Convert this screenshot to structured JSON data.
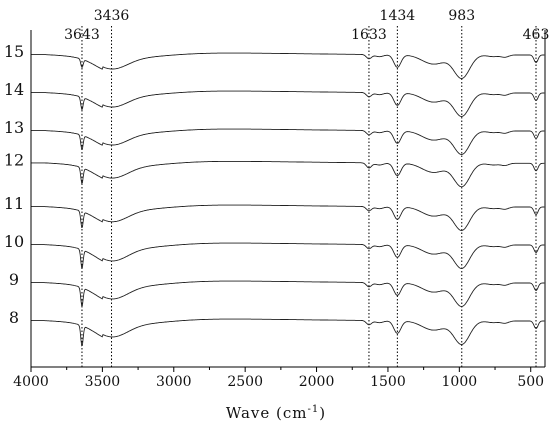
{
  "chart_data": {
    "type": "line",
    "title": "",
    "xlabel": "Wave  (cm",
    "xlabel_sup": "-1",
    "xlabel_close": ")",
    "ylabel": "",
    "xlim": [
      4000,
      400
    ],
    "x_ticks": [
      4000,
      3500,
      3000,
      2500,
      2000,
      1500,
      1000,
      500
    ],
    "x_tick_labels": [
      "4000",
      "3500",
      "3000",
      "2500",
      "2000",
      "1500",
      "1000",
      "500"
    ],
    "grid": false,
    "reference_lines": [
      {
        "x": 3643,
        "label": "3643"
      },
      {
        "x": 3436,
        "label": "3436"
      },
      {
        "x": 1633,
        "label": "1633"
      },
      {
        "x": 1434,
        "label": "1434"
      },
      {
        "x": 983,
        "label": "983"
      },
      {
        "x": 463,
        "label": "463"
      }
    ],
    "series": [
      {
        "name": "15",
        "offset": 15.0,
        "d3643": 0.2,
        "d3436": 0.4,
        "d1633": 0.1,
        "d1434": 0.3,
        "d983": 0.55,
        "d463": 0.18
      },
      {
        "name": "14",
        "offset": 13.0,
        "d3643": 0.3,
        "d3436": 0.4,
        "d1633": 0.1,
        "d1434": 0.3,
        "d983": 0.55,
        "d463": 0.18
      },
      {
        "name": "13",
        "offset": 11.0,
        "d3643": 0.35,
        "d3436": 0.4,
        "d1633": 0.1,
        "d1434": 0.3,
        "d983": 0.55,
        "d463": 0.18
      },
      {
        "name": "12",
        "offset": 9.3,
        "d3643": 0.38,
        "d3436": 0.42,
        "d1633": 0.12,
        "d1434": 0.3,
        "d983": 0.55,
        "d463": 0.18
      },
      {
        "name": "11",
        "offset": 7.0,
        "d3643": 0.4,
        "d3436": 0.42,
        "d1633": 0.1,
        "d1434": 0.3,
        "d983": 0.55,
        "d463": 0.18
      },
      {
        "name": "10",
        "offset": 5.0,
        "d3643": 0.45,
        "d3436": 0.45,
        "d1633": 0.1,
        "d1434": 0.3,
        "d983": 0.55,
        "d463": 0.18
      },
      {
        "name": "9",
        "offset": 3.0,
        "d3643": 0.45,
        "d3436": 0.45,
        "d1633": 0.1,
        "d1434": 0.3,
        "d983": 0.55,
        "d463": 0.18
      },
      {
        "name": "8",
        "offset": 1.0,
        "d3643": 0.5,
        "d3436": 0.45,
        "d1633": 0.1,
        "d1434": 0.3,
        "d983": 0.55,
        "d463": 0.18
      }
    ]
  }
}
